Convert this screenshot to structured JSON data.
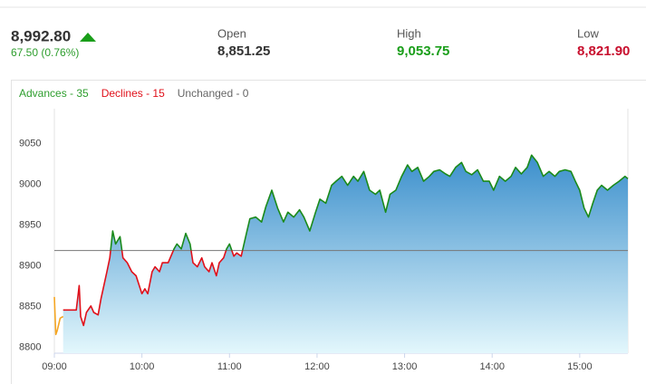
{
  "header": {
    "last": "8,992.80",
    "change": "67.50 (0.76%)",
    "stats": [
      {
        "label": "Open",
        "value": "8,851.25",
        "color": "#333333"
      },
      {
        "label": "High",
        "value": "9,053.75",
        "color": "#1a9e1a"
      },
      {
        "label": "Low",
        "value": "8,821.90",
        "color": "#c8102e"
      }
    ]
  },
  "chart_data": {
    "type": "line",
    "breadth": [
      {
        "label": "Advances - 35",
        "color": "#2e9e2e"
      },
      {
        "label": "Declines - 15",
        "color": "#e0101a"
      },
      {
        "label": "Unchanged - 0",
        "color": "#666666"
      }
    ],
    "xlim": [
      540,
      933
    ],
    "xticks": [
      {
        "value": 540,
        "label": "09:00"
      },
      {
        "value": 600,
        "label": "10:00"
      },
      {
        "value": 660,
        "label": "11:00"
      },
      {
        "value": 720,
        "label": "12:00"
      },
      {
        "value": 780,
        "label": "13:00"
      },
      {
        "value": 840,
        "label": "14:00"
      },
      {
        "value": 900,
        "label": "15:00"
      }
    ],
    "ylim": [
      8793,
      9093
    ],
    "yticks": [
      8800,
      8850,
      8900,
      8950,
      9000,
      9050
    ],
    "reference_line": 8919,
    "reference_color": "#777777",
    "area_colors": [
      "#3b8fcc",
      "#e3f7fc"
    ],
    "series": [
      {
        "color": "#f5a623",
        "x": [
          540,
          541,
          542,
          544,
          546
        ],
        "values": [
          8862,
          8816,
          8821,
          8836,
          8838
        ]
      },
      {
        "color_above": "#1a8a1a",
        "color_below": "#e0101a",
        "fill": true,
        "x": [
          546,
          555,
          557,
          558,
          560,
          562,
          565,
          567,
          570,
          572,
          576,
          578,
          580,
          582,
          585,
          587,
          590,
          593,
          596,
          598,
          600,
          602,
          604,
          607,
          609,
          612,
          614,
          618,
          622,
          624,
          627,
          630,
          633,
          635,
          638,
          641,
          643,
          646,
          648,
          651,
          653,
          656,
          658,
          660,
          663,
          665,
          668,
          672,
          674,
          678,
          682,
          685,
          689,
          693,
          697,
          700,
          704,
          708,
          711,
          715,
          719,
          722,
          726,
          730,
          733,
          737,
          741,
          745,
          748,
          752,
          756,
          760,
          763,
          767,
          770,
          774,
          778,
          782,
          785,
          789,
          793,
          797,
          800,
          804,
          808,
          811,
          815,
          819,
          822,
          826,
          830,
          834,
          838,
          841,
          845,
          849,
          853,
          856,
          860,
          864,
          867,
          871,
          875,
          879,
          883,
          886,
          890,
          894,
          897,
          900,
          903,
          906,
          909,
          912,
          915,
          919,
          923,
          927,
          931,
          933
        ],
        "values": [
          8846,
          8846,
          8876,
          8838,
          8827,
          8843,
          8851,
          8843,
          8840,
          8860,
          8893,
          8910,
          8943,
          8927,
          8936,
          8910,
          8904,
          8893,
          8888,
          8877,
          8866,
          8872,
          8866,
          8893,
          8899,
          8893,
          8904,
          8904,
          8921,
          8927,
          8921,
          8940,
          8927,
          8904,
          8899,
          8910,
          8899,
          8893,
          8904,
          8888,
          8904,
          8910,
          8921,
          8927,
          8912,
          8916,
          8912,
          8943,
          8958,
          8960,
          8954,
          8973,
          8993,
          8971,
          8954,
          8966,
          8960,
          8969,
          8960,
          8943,
          8966,
          8982,
          8977,
          8999,
          9004,
          9010,
          8999,
          9010,
          9004,
          9016,
          8993,
          8988,
          8993,
          8966,
          8988,
          8993,
          9010,
          9024,
          9016,
          9021,
          9004,
          9010,
          9016,
          9018,
          9013,
          9010,
          9021,
          9027,
          9016,
          9012,
          9018,
          9004,
          9004,
          8993,
          9010,
          9004,
          9010,
          9021,
          9013,
          9021,
          9036,
          9027,
          9010,
          9016,
          9010,
          9016,
          9018,
          9016,
          9004,
          8993,
          8971,
          8960,
          8977,
          8993,
          8999,
          8993,
          8999,
          9004,
          9010,
          9007
        ]
      }
    ]
  }
}
